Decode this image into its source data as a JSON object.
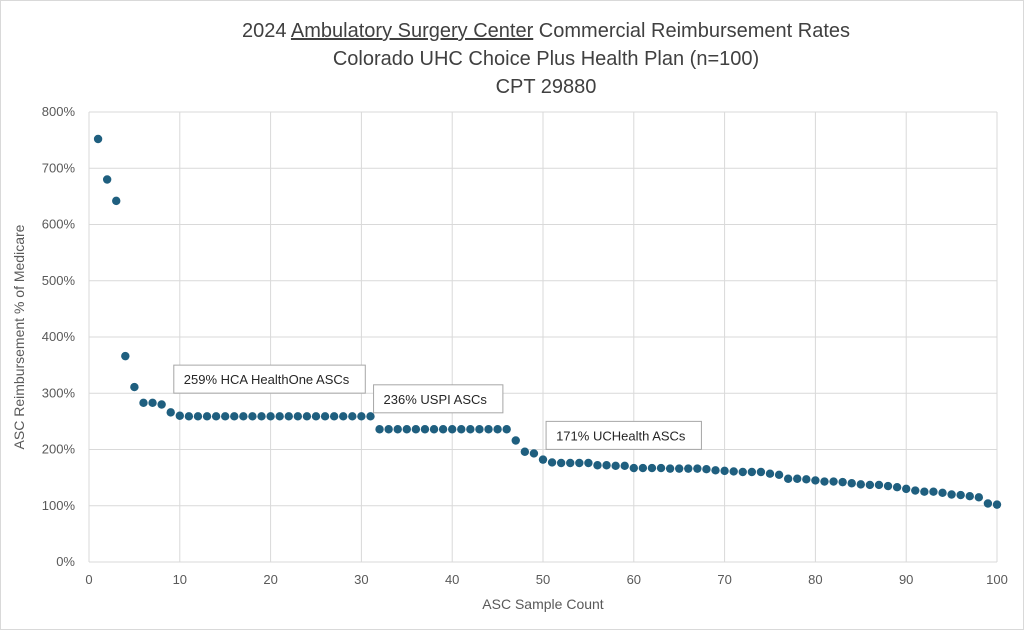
{
  "chart_data": {
    "type": "scatter",
    "title": {
      "line1_prefix": "2024 ",
      "line1_underlined": "Ambulatory Surgery Center",
      "line1_suffix": " Commercial Reimbursement Rates",
      "line2": "Colorado UHC Choice Plus Health Plan (n=100)",
      "line3": "CPT 29880"
    },
    "xlabel": "ASC Sample Count",
    "ylabel": "ASC Reimbursement % of Medicare",
    "xlim": [
      0,
      100
    ],
    "ylim": [
      0,
      800
    ],
    "x_ticks": [
      0,
      10,
      20,
      30,
      40,
      50,
      60,
      70,
      80,
      90,
      100
    ],
    "y_ticks": [
      0,
      100,
      200,
      300,
      400,
      500,
      600,
      700,
      800
    ],
    "y_tick_suffix": "%",
    "grid": "vertical and horizontal",
    "marker_color": "#1f5f7f",
    "x": [
      1,
      2,
      3,
      4,
      5,
      6,
      7,
      8,
      9,
      10,
      11,
      12,
      13,
      14,
      15,
      16,
      17,
      18,
      19,
      20,
      21,
      22,
      23,
      24,
      25,
      26,
      27,
      28,
      29,
      30,
      31,
      32,
      33,
      34,
      35,
      36,
      37,
      38,
      39,
      40,
      41,
      42,
      43,
      44,
      45,
      46,
      47,
      48,
      49,
      50,
      51,
      52,
      53,
      54,
      55,
      56,
      57,
      58,
      59,
      60,
      61,
      62,
      63,
      64,
      65,
      66,
      67,
      68,
      69,
      70,
      71,
      72,
      73,
      74,
      75,
      76,
      77,
      78,
      79,
      80,
      81,
      82,
      83,
      84,
      85,
      86,
      87,
      88,
      89,
      90,
      91,
      92,
      93,
      94,
      95,
      96,
      97,
      98,
      99,
      100
    ],
    "y": [
      752,
      680,
      642,
      366,
      311,
      283,
      283,
      280,
      266,
      260,
      259,
      259,
      259,
      259,
      259,
      259,
      259,
      259,
      259,
      259,
      259,
      259,
      259,
      259,
      259,
      259,
      259,
      259,
      259,
      259,
      259,
      236,
      236,
      236,
      236,
      236,
      236,
      236,
      236,
      236,
      236,
      236,
      236,
      236,
      236,
      236,
      216,
      196,
      193,
      182,
      177,
      176,
      176,
      176,
      176,
      172,
      172,
      171,
      171,
      167,
      167,
      167,
      167,
      166,
      166,
      166,
      166,
      165,
      163,
      162,
      161,
      160,
      160,
      160,
      157,
      155,
      148,
      148,
      147,
      145,
      143,
      143,
      142,
      140,
      138,
      137,
      137,
      135,
      133,
      130,
      127,
      125,
      125,
      123,
      120,
      119,
      117,
      115,
      104,
      102
    ],
    "annotations": [
      {
        "text": "259% HCA HealthOne ASCs",
        "x": 10,
        "y": 350
      },
      {
        "text": "236% USPI ASCs",
        "x": 32,
        "y": 315
      },
      {
        "text": "171% UCHealth ASCs",
        "x": 51,
        "y": 250
      }
    ]
  }
}
